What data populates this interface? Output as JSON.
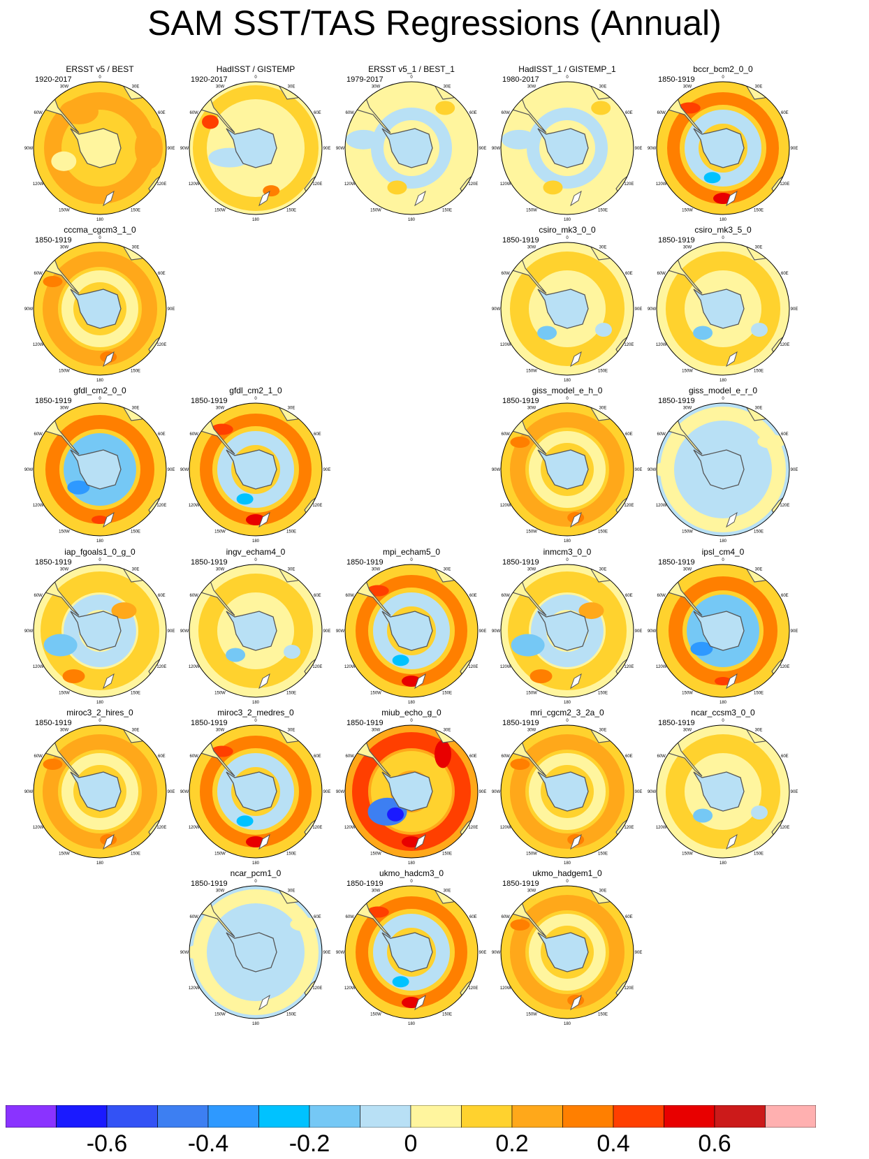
{
  "title": "SAM SST/TAS Regressions (Annual)",
  "longitude_labels": [
    "0",
    "30E",
    "60E",
    "90E",
    "120E",
    "150E",
    "180",
    "150W",
    "120W",
    "90W",
    "60W",
    "30W"
  ],
  "colorbar": {
    "colors": [
      "#8a33ff",
      "#1a1aff",
      "#3352f5",
      "#3d7ff2",
      "#2e99ff",
      "#00c2ff",
      "#75c8f5",
      "#b8e0f5",
      "#fff59e",
      "#ffd22e",
      "#ffa81a",
      "#ff7f00",
      "#ff3f00",
      "#e80000",
      "#cc1a1a",
      "#ffb0b0"
    ],
    "tick_labels": [
      "-0.6",
      "-0.4",
      "-0.2",
      "0",
      "0.2",
      "0.4",
      "0.6"
    ]
  },
  "panels": [
    {
      "title": "ERSST v5 / BEST",
      "period": "1920-2017",
      "pattern": "obs_warm"
    },
    {
      "title": "HadISST / GISTEMP",
      "period": "1920-2017",
      "pattern": "obs_mixed"
    },
    {
      "title": "ERSST v5_1 / BEST_1",
      "period": "1979-2017",
      "pattern": "weak_cool"
    },
    {
      "title": "HadISST_1 / GISTEMP_1",
      "period": "1980-2017",
      "pattern": "weak_cool"
    },
    {
      "title": "bccr_bcm2_0_0",
      "period": "1850-1919",
      "pattern": "ring_strong"
    },
    {
      "title": "cccma_cgcm3_1_0",
      "period": "1850-1919",
      "pattern": "ring_warm"
    },
    {
      "title": "csiro_mk3_0_0",
      "period": "1850-1919",
      "pattern": "mild"
    },
    {
      "title": "csiro_mk3_5_0",
      "period": "1850-1919",
      "pattern": "mild"
    },
    {
      "title": "gfdl_cm2_0_0",
      "period": "1850-1919",
      "pattern": "ring_blue"
    },
    {
      "title": "gfdl_cm2_1_0",
      "period": "1850-1919",
      "pattern": "ring_strong"
    },
    {
      "title": "giss_model_e_h_0",
      "period": "1850-1919",
      "pattern": "ring_warm"
    },
    {
      "title": "giss_model_e_r_0",
      "period": "1850-1919",
      "pattern": "cool_wide"
    },
    {
      "title": "iap_fgoals1_0_g_0",
      "period": "1850-1919",
      "pattern": "swirl"
    },
    {
      "title": "ingv_echam4_0",
      "period": "1850-1919",
      "pattern": "mild"
    },
    {
      "title": "mpi_echam5_0",
      "period": "1850-1919",
      "pattern": "ring_strong"
    },
    {
      "title": "inmcm3_0_0",
      "period": "1850-1919",
      "pattern": "swirl"
    },
    {
      "title": "ipsl_cm4_0",
      "period": "1850-1919",
      "pattern": "ring_blue"
    },
    {
      "title": "miroc3_2_hires_0",
      "period": "1850-1919",
      "pattern": "ring_warm"
    },
    {
      "title": "miroc3_2_medres_0",
      "period": "1850-1919",
      "pattern": "ring_strong"
    },
    {
      "title": "miub_echo_g_0",
      "period": "1850-1919",
      "pattern": "miub"
    },
    {
      "title": "mri_cgcm2_3_2a_0",
      "period": "1850-1919",
      "pattern": "ring_warm"
    },
    {
      "title": "ncar_ccsm3_0_0",
      "period": "1850-1919",
      "pattern": "mild"
    },
    {
      "title": "ncar_pcm1_0",
      "period": "1850-1919",
      "pattern": "cool_wide"
    },
    {
      "title": "ukmo_hadcm3_0",
      "period": "1850-1919",
      "pattern": "ring_strong"
    },
    {
      "title": "ukmo_hadgem1_0",
      "period": "1850-1919",
      "pattern": "ring_warm"
    }
  ]
}
